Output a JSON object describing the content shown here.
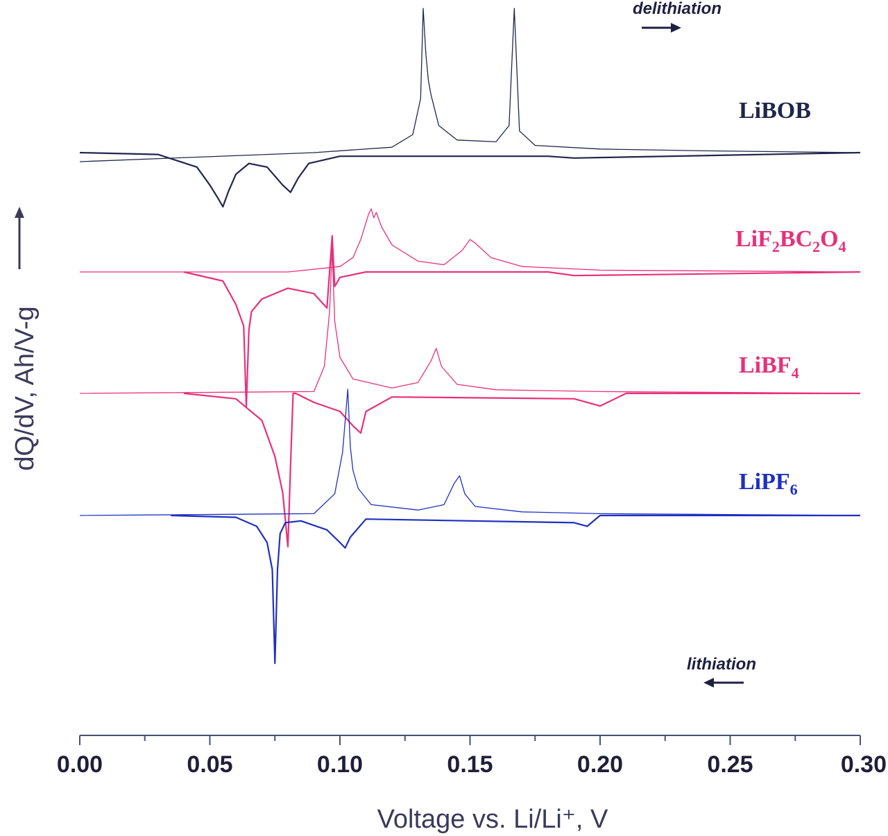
{
  "chart_data": {
    "type": "line",
    "title": "",
    "xlabel": "Voltage vs. Li/Li⁺, V",
    "ylabel": "dQ/dV, Ah/V-g",
    "xlim": [
      0.0,
      0.3
    ],
    "xticks": [
      "0.00",
      "0.05",
      "0.10",
      "0.15",
      "0.20",
      "0.25",
      "0.30"
    ],
    "grid": false,
    "legend": "inline labels on the right",
    "annotations": [
      {
        "text": "delithiation",
        "arrow": "right"
      },
      {
        "text": "lithiation",
        "arrow": "left"
      }
    ],
    "series": [
      {
        "label_main": "LiBOB",
        "label_parts": [
          [
            "LiBOB",
            ""
          ]
        ],
        "color": "#20264a",
        "delith_x": [
          0.0,
          0.09,
          0.12,
          0.128,
          0.131,
          0.132,
          0.133,
          0.134,
          0.135,
          0.138,
          0.145,
          0.16,
          0.165,
          0.167,
          0.169,
          0.175,
          0.2,
          0.24,
          0.3
        ],
        "delith_y": [
          -0.5,
          0,
          0.3,
          1.0,
          3.0,
          8.0,
          5.5,
          4.0,
          3.2,
          1.5,
          0.7,
          0.6,
          1.5,
          8.0,
          1.2,
          0.4,
          0.2,
          0.1,
          0
        ],
        "lith_x": [
          0.0,
          0.03,
          0.045,
          0.05,
          0.053,
          0.055,
          0.057,
          0.06,
          0.065,
          0.072,
          0.078,
          0.081,
          0.084,
          0.088,
          0.1,
          0.18,
          0.19,
          0.3
        ],
        "lith_y": [
          0,
          -0.1,
          -0.8,
          -1.8,
          -2.5,
          -3.0,
          -2.2,
          -1.2,
          -0.6,
          -0.8,
          -1.8,
          -2.2,
          -1.4,
          -0.6,
          -0.2,
          -0.2,
          -0.3,
          0
        ]
      },
      {
        "label_main": "LiF2BC2O4",
        "label_parts": [
          [
            "LiF",
            ""
          ],
          [
            "2",
            "sub"
          ],
          [
            "BC",
            ""
          ],
          [
            "2",
            "sub"
          ],
          [
            "O",
            ""
          ],
          [
            "4",
            "sub"
          ]
        ],
        "color": "#e8307a",
        "delith_x": [
          0.0,
          0.08,
          0.1,
          0.105,
          0.108,
          0.111,
          0.112,
          0.113,
          0.114,
          0.116,
          0.12,
          0.13,
          0.14,
          0.147,
          0.15,
          0.152,
          0.158,
          0.17,
          0.2,
          0.25,
          0.3
        ],
        "delith_y": [
          0,
          0,
          0.3,
          0.8,
          1.8,
          3.2,
          3.5,
          3.0,
          3.3,
          2.5,
          1.5,
          0.6,
          0.4,
          1.2,
          1.8,
          1.6,
          0.8,
          0.3,
          0.1,
          0.05,
          0
        ],
        "lith_x": [
          0.04,
          0.055,
          0.06,
          0.063,
          0.064,
          0.065,
          0.066,
          0.07,
          0.08,
          0.09,
          0.095,
          0.097,
          0.098,
          0.1,
          0.11,
          0.18,
          0.19,
          0.3
        ],
        "lith_y": [
          0,
          -0.5,
          -1.8,
          -3.0,
          -7.5,
          -3.2,
          -2.2,
          -1.5,
          -0.9,
          -1.2,
          -2.0,
          2.0,
          -0.8,
          -0.3,
          0,
          0,
          -0.2,
          0
        ]
      },
      {
        "label_main": "LiBF4",
        "label_parts": [
          [
            "LiBF",
            ""
          ],
          [
            "4",
            "sub"
          ]
        ],
        "color": "#e8307a",
        "delith_x": [
          0.0,
          0.09,
          0.094,
          0.096,
          0.097,
          0.098,
          0.1,
          0.105,
          0.12,
          0.13,
          0.135,
          0.137,
          0.139,
          0.145,
          0.16,
          0.2,
          0.25,
          0.3
        ],
        "delith_y": [
          0,
          0.1,
          1.5,
          4.5,
          8.0,
          4.0,
          2.0,
          0.8,
          0.3,
          0.6,
          1.8,
          2.5,
          1.5,
          0.5,
          0.2,
          0.1,
          0.05,
          0
        ],
        "lith_x": [
          0.04,
          0.06,
          0.07,
          0.075,
          0.078,
          0.08,
          0.081,
          0.082,
          0.083,
          0.09,
          0.1,
          0.105,
          0.108,
          0.11,
          0.12,
          0.19,
          0.2,
          0.21,
          0.3
        ],
        "lith_y": [
          0,
          -0.3,
          -1.5,
          -3.5,
          -5.5,
          -8.5,
          -4.0,
          0.0,
          0.0,
          -0.5,
          -1.0,
          -1.8,
          -2.2,
          -1.0,
          -0.2,
          -0.3,
          -0.7,
          0,
          0
        ]
      },
      {
        "label_main": "LiPF6",
        "label_parts": [
          [
            "LiPF",
            ""
          ],
          [
            "6",
            "sub"
          ]
        ],
        "color": "#1f2fc0",
        "delith_x": [
          0.0,
          0.09,
          0.098,
          0.101,
          0.103,
          0.104,
          0.105,
          0.107,
          0.112,
          0.13,
          0.14,
          0.144,
          0.146,
          0.148,
          0.152,
          0.17,
          0.2,
          0.25,
          0.3
        ],
        "delith_y": [
          0,
          0.1,
          1.2,
          3.5,
          7.0,
          3.8,
          2.5,
          1.5,
          0.6,
          0.3,
          0.6,
          1.8,
          2.2,
          1.2,
          0.5,
          0.2,
          0.1,
          0.05,
          0
        ],
        "lith_x": [
          0.035,
          0.06,
          0.068,
          0.072,
          0.074,
          0.075,
          0.076,
          0.077,
          0.079,
          0.085,
          0.095,
          0.1,
          0.102,
          0.104,
          0.11,
          0.19,
          0.195,
          0.2,
          0.3
        ],
        "lith_y": [
          0,
          -0.1,
          -0.6,
          -1.5,
          -3.0,
          -8.2,
          -3.0,
          -1.0,
          -0.4,
          -0.3,
          -0.8,
          -1.5,
          -1.8,
          -1.2,
          -0.2,
          -0.4,
          -0.6,
          0,
          0
        ]
      }
    ]
  }
}
